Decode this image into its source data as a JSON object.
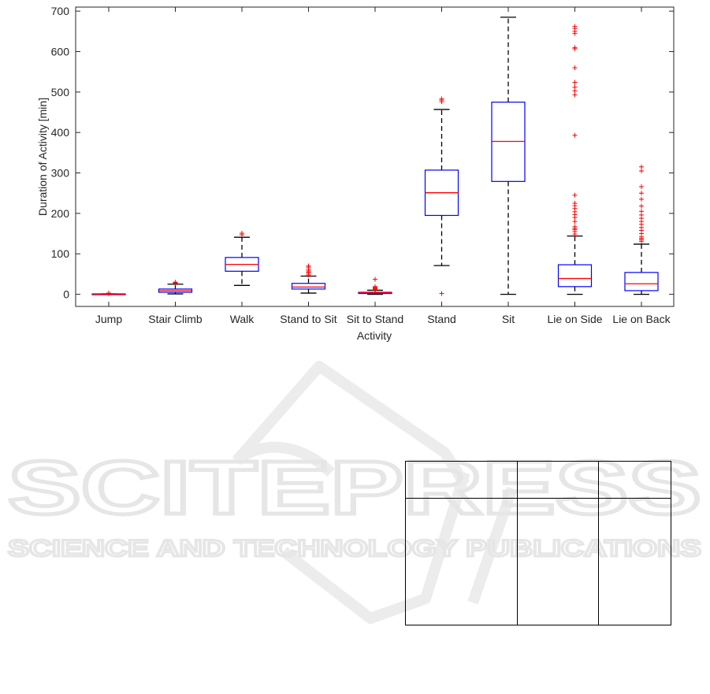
{
  "watermark": {
    "brand": "SCITEPRESS",
    "tagline": "SCIENCE AND TECHNOLOGY PUBLICATIONS"
  },
  "colors": {
    "box": "#0000ff",
    "median": "#ff0000",
    "whisker": "#000000",
    "outlier": "#ff0000",
    "axis": "#262626"
  },
  "chart_data": {
    "type": "box",
    "title": "",
    "xlabel": "Activity",
    "ylabel": "Duration of Activity [min]",
    "ylim": [
      -30,
      710
    ],
    "yticks": [
      0,
      100,
      200,
      300,
      400,
      500,
      600,
      700
    ],
    "grid": false,
    "categories": [
      "Jump",
      "Stair Climb",
      "Walk",
      "Stand to Sit",
      "Sit to Stand",
      "Stand",
      "Sit",
      "Lie on Side",
      "Lie on Back"
    ],
    "series": [
      {
        "min": 0,
        "q1": 0,
        "median": 0,
        "q3": 1,
        "max": 1,
        "outliers": [
          2,
          3
        ]
      },
      {
        "min": 1,
        "q1": 5,
        "median": 9,
        "q3": 13,
        "max": 25,
        "outliers": [
          27,
          28,
          29,
          30
        ]
      },
      {
        "min": 22,
        "q1": 57,
        "median": 74,
        "q3": 91,
        "max": 141,
        "outliers": [
          147,
          151
        ]
      },
      {
        "min": 3,
        "q1": 13,
        "median": 18,
        "q3": 27,
        "max": 45,
        "outliers": [
          48,
          52,
          55,
          58,
          62,
          67,
          70
        ]
      },
      {
        "min": 0,
        "q1": 2,
        "median": 4,
        "q3": 5,
        "max": 10,
        "outliers": [
          11,
          13,
          15,
          17,
          19,
          37
        ]
      },
      {
        "min": 71,
        "q1": 195,
        "median": 251,
        "q3": 307,
        "max": 457,
        "outliers": [
          2,
          476,
          480,
          483
        ]
      },
      {
        "min": 0,
        "q1": 279,
        "median": 378,
        "q3": 475,
        "max": 685,
        "outliers": []
      },
      {
        "min": 0,
        "q1": 19,
        "median": 39,
        "q3": 73,
        "max": 144,
        "outliers": [
          149,
          155,
          160,
          163,
          167,
          180,
          190,
          197,
          204,
          212,
          219,
          225,
          245,
          393,
          493,
          503,
          512,
          524,
          560,
          607,
          610,
          645,
          650,
          657,
          662
        ]
      },
      {
        "min": 0,
        "q1": 9,
        "median": 26,
        "q3": 54,
        "max": 124,
        "outliers": [
          131,
          135,
          138,
          142,
          150,
          158,
          165,
          173,
          180,
          188,
          196,
          205,
          218,
          235,
          250,
          266,
          305,
          315
        ]
      }
    ]
  },
  "table": {
    "columns": [
      "",
      "",
      ""
    ],
    "rows": []
  }
}
